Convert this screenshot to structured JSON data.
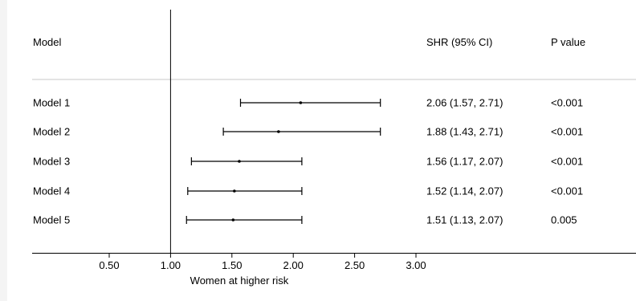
{
  "chart_data": {
    "type": "forest",
    "headers": {
      "model": "Model",
      "shr": "SHR (95% CI)",
      "p": "P value"
    },
    "rows": [
      {
        "label": "Model 1",
        "estimate": 2.06,
        "lower": 1.57,
        "upper": 2.71,
        "shr_text": "2.06 (1.57, 2.71)",
        "p_text": "<0.001"
      },
      {
        "label": "Model 2",
        "estimate": 1.88,
        "lower": 1.43,
        "upper": 2.71,
        "shr_text": "1.88 (1.43, 2.71)",
        "p_text": "<0.001"
      },
      {
        "label": "Model 3",
        "estimate": 1.56,
        "lower": 1.17,
        "upper": 2.07,
        "shr_text": "1.56 (1.17, 2.07)",
        "p_text": "<0.001"
      },
      {
        "label": "Model 4",
        "estimate": 1.52,
        "lower": 1.14,
        "upper": 2.07,
        "shr_text": "1.52 (1.14, 2.07)",
        "p_text": "<0.001"
      },
      {
        "label": "Model 5",
        "estimate": 1.51,
        "lower": 1.13,
        "upper": 2.07,
        "shr_text": "1.51 (1.13, 2.07)",
        "p_text": "0.005"
      }
    ],
    "xticks": [
      0.5,
      1.0,
      1.5,
      2.0,
      2.5,
      3.0
    ],
    "xtick_labels": [
      "0.50",
      "1.00",
      "1.50",
      "2.00",
      "2.50",
      "3.00"
    ],
    "xlim": [
      0.5,
      3.0
    ],
    "reference_line": 1.0,
    "xlabel": "Women at higher risk"
  }
}
